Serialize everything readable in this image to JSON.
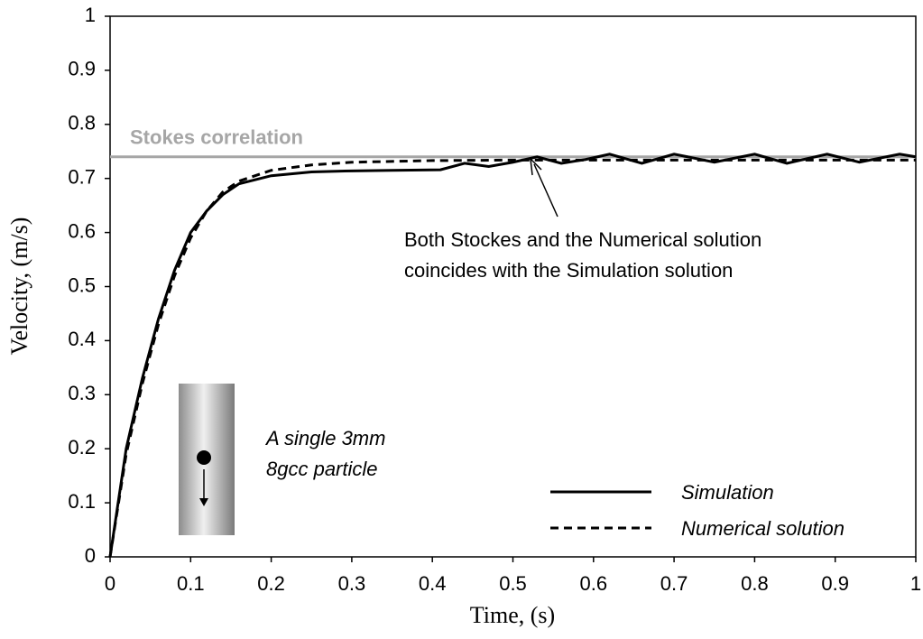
{
  "chart_data": {
    "type": "line",
    "xlabel": "Time, (s)",
    "ylabel": "Velocity, (m/s)",
    "xlim": [
      0,
      1
    ],
    "ylim": [
      0,
      1
    ],
    "xticks": [
      0,
      0.1,
      0.2,
      0.3,
      0.4,
      0.5,
      0.6,
      0.7,
      0.8,
      0.9,
      1
    ],
    "yticks": [
      0,
      0.1,
      0.2,
      0.3,
      0.4,
      0.5,
      0.6,
      0.7,
      0.8,
      0.9,
      1
    ],
    "series": [
      {
        "name": "Simulation",
        "color": "#000000",
        "dash": "solid",
        "x": [
          0,
          0.02,
          0.04,
          0.06,
          0.08,
          0.1,
          0.12,
          0.14,
          0.16,
          0.2,
          0.25,
          0.3,
          0.35,
          0.41,
          0.44,
          0.47,
          0.5,
          0.53,
          0.56,
          0.59,
          0.62,
          0.66,
          0.7,
          0.75,
          0.8,
          0.84,
          0.89,
          0.93,
          0.98,
          1.0
        ],
        "values": [
          0,
          0.2,
          0.33,
          0.44,
          0.53,
          0.6,
          0.64,
          0.67,
          0.69,
          0.705,
          0.712,
          0.714,
          0.715,
          0.716,
          0.728,
          0.722,
          0.73,
          0.74,
          0.728,
          0.735,
          0.745,
          0.728,
          0.745,
          0.73,
          0.745,
          0.728,
          0.745,
          0.73,
          0.745,
          0.74
        ]
      },
      {
        "name": "Numerical solution",
        "color": "#000000",
        "dash": "dashed",
        "x": [
          0,
          0.02,
          0.04,
          0.06,
          0.08,
          0.1,
          0.12,
          0.14,
          0.16,
          0.2,
          0.25,
          0.3,
          0.4,
          0.5,
          0.6,
          0.8,
          1.0
        ],
        "values": [
          0,
          0.19,
          0.32,
          0.43,
          0.52,
          0.59,
          0.64,
          0.675,
          0.695,
          0.715,
          0.725,
          0.73,
          0.733,
          0.734,
          0.734,
          0.734,
          0.734
        ]
      }
    ],
    "reference_line": {
      "label": "Stokes correlation",
      "value": 0.74,
      "color": "#a6a6a6"
    },
    "annotations": [
      "Both Stockes and the  Numerical solution",
      "coincides with the Simulation solution",
      "A single 3mm",
      "8gcc particle"
    ],
    "legend": "bottom-right"
  }
}
